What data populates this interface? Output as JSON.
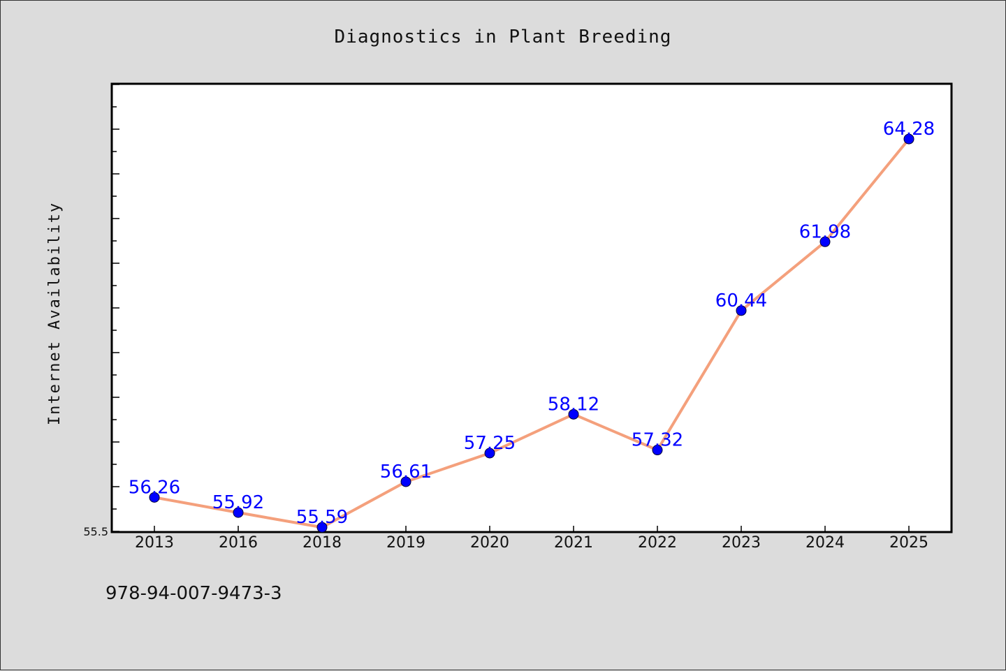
{
  "chart_data": {
    "type": "line",
    "title": "Diagnostics in Plant Breeding",
    "xlabel": "",
    "ylabel": "Internet Availability",
    "categories": [
      "2013",
      "2016",
      "2018",
      "2019",
      "2020",
      "2021",
      "2022",
      "2023",
      "2024",
      "2025"
    ],
    "series": [
      {
        "values": [
          56.26,
          55.92,
          55.59,
          56.61,
          57.25,
          58.12,
          57.32,
          60.44,
          61.98,
          64.28
        ]
      }
    ],
    "data_labels": [
      "56.26",
      "55.92",
      "55.59",
      "56.61",
      "57.25",
      "58.12",
      "57.32",
      "60.44",
      "61.98",
      "64.28"
    ],
    "ylim": [
      55.5,
      65.5
    ],
    "y_tick_labels": [
      {
        "value": 55.5,
        "label": "55.5"
      }
    ],
    "y_minor_tick_step": 0.5,
    "grid": false,
    "colors": {
      "line": "#f4a07c",
      "marker": "#0000ff",
      "label": "#0000ff",
      "background": "#dcdcdc",
      "plot_background": "#ffffff"
    }
  },
  "footer": {
    "isbn": "978-94-007-9473-3"
  }
}
